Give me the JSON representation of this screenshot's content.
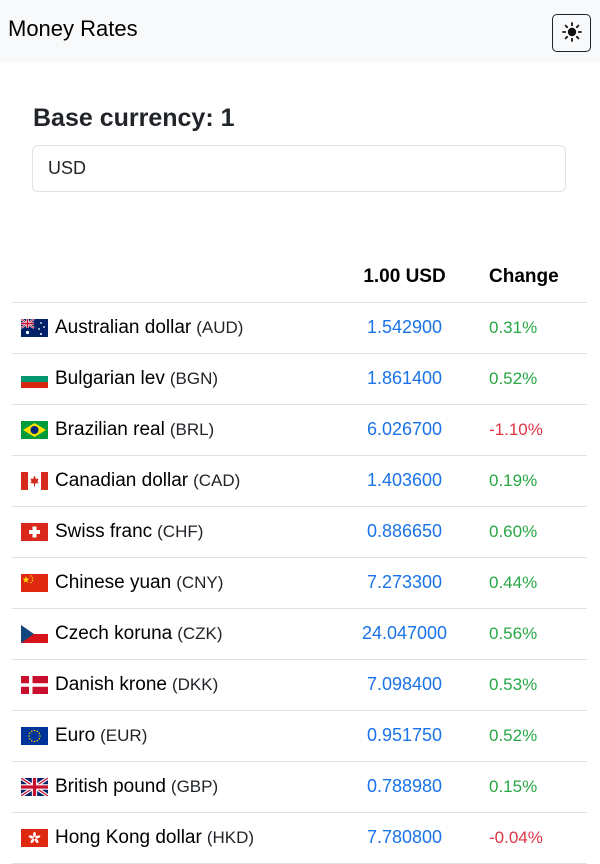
{
  "app": {
    "title": "Money Rates",
    "theme_icon": "sun-icon"
  },
  "base": {
    "label": "Base currency: 1",
    "value": "USD"
  },
  "table": {
    "headers": {
      "name": "",
      "rate": "1.00 USD",
      "change": "Change"
    },
    "rows": [
      {
        "name": "Australian dollar",
        "code": "(AUD)",
        "rate": "1.542900",
        "change": "0.31%",
        "direction": "up",
        "flag": "flag-australia-icon"
      },
      {
        "name": "Bulgarian lev",
        "code": "(BGN)",
        "rate": "1.861400",
        "change": "0.52%",
        "direction": "up",
        "flag": "flag-bulgaria-icon"
      },
      {
        "name": "Brazilian real",
        "code": "(BRL)",
        "rate": "6.026700",
        "change": "-1.10%",
        "direction": "down",
        "flag": "flag-brazil-icon"
      },
      {
        "name": "Canadian dollar",
        "code": "(CAD)",
        "rate": "1.403600",
        "change": "0.19%",
        "direction": "up",
        "flag": "flag-canada-icon"
      },
      {
        "name": "Swiss franc",
        "code": "(CHF)",
        "rate": "0.886650",
        "change": "0.60%",
        "direction": "up",
        "flag": "flag-switzerland-icon"
      },
      {
        "name": "Chinese yuan",
        "code": "(CNY)",
        "rate": "7.273300",
        "change": "0.44%",
        "direction": "up",
        "flag": "flag-china-icon"
      },
      {
        "name": "Czech koruna",
        "code": "(CZK)",
        "rate": "24.047000",
        "change": "0.56%",
        "direction": "up",
        "flag": "flag-czechia-icon"
      },
      {
        "name": "Danish krone",
        "code": "(DKK)",
        "rate": "7.098400",
        "change": "0.53%",
        "direction": "up",
        "flag": "flag-denmark-icon"
      },
      {
        "name": "Euro",
        "code": "(EUR)",
        "rate": "0.951750",
        "change": "0.52%",
        "direction": "up",
        "flag": "flag-eu-icon"
      },
      {
        "name": "British pound",
        "code": "(GBP)",
        "rate": "0.788980",
        "change": "0.15%",
        "direction": "up",
        "flag": "flag-uk-icon"
      },
      {
        "name": "Hong Kong dollar",
        "code": "(HKD)",
        "rate": "7.780800",
        "change": "-0.04%",
        "direction": "down",
        "flag": "flag-hong-kong-icon"
      }
    ]
  },
  "colors": {
    "rate": "#1a73e8",
    "positive": "#28a745",
    "negative": "#dc3545"
  }
}
